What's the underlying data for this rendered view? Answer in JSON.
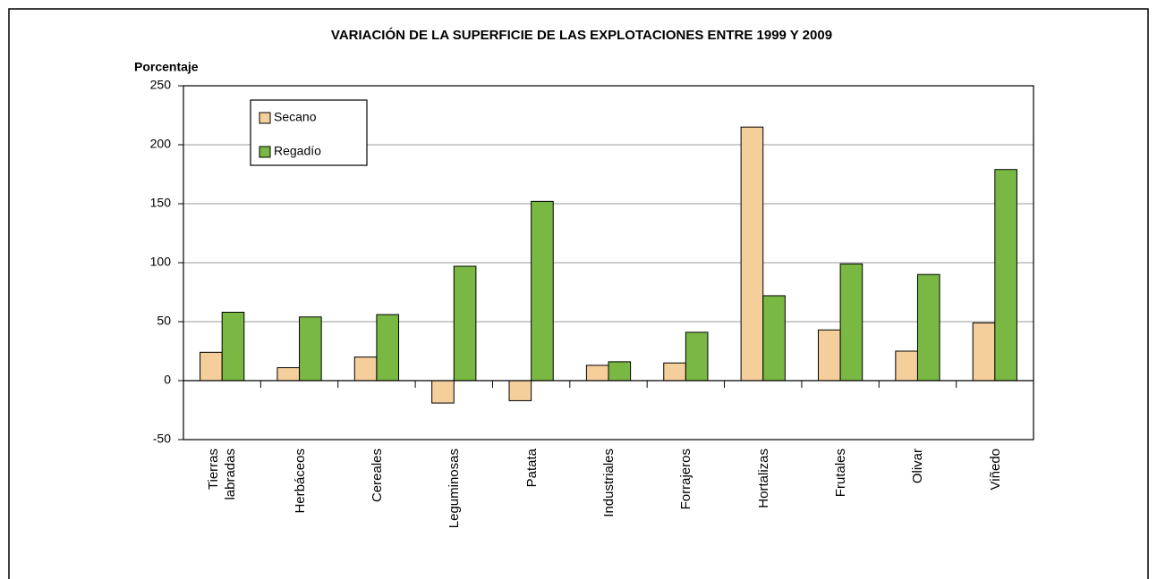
{
  "chart_data": {
    "type": "bar",
    "title": "VARIACIÓN DE LA SUPERFICIE DE LAS EXPLOTACIONES ENTRE 1999 Y 2009",
    "y_axis_label": "Porcentaje",
    "categories": [
      "Tierras\nlabradas",
      "Herbáceos",
      "Cereales",
      "Leguminosas",
      "Patata",
      "Industriales",
      "Forrajeros",
      "Hortalizas",
      "Frutales",
      "Olivar",
      "Viñedo"
    ],
    "series": [
      {
        "name": "Secano",
        "color": "#f5cf9b",
        "values": [
          24,
          11,
          20,
          -19,
          -17,
          13,
          15,
          215,
          43,
          25,
          49
        ]
      },
      {
        "name": "Regadío",
        "color": "#78b843",
        "values": [
          58,
          54,
          56,
          97,
          152,
          16,
          41,
          72,
          99,
          90,
          179
        ]
      }
    ],
    "ylim": [
      -50,
      250
    ],
    "yticks": [
      -50,
      0,
      50,
      100,
      150,
      200,
      250
    ],
    "grid": true,
    "legend": "upper left"
  }
}
